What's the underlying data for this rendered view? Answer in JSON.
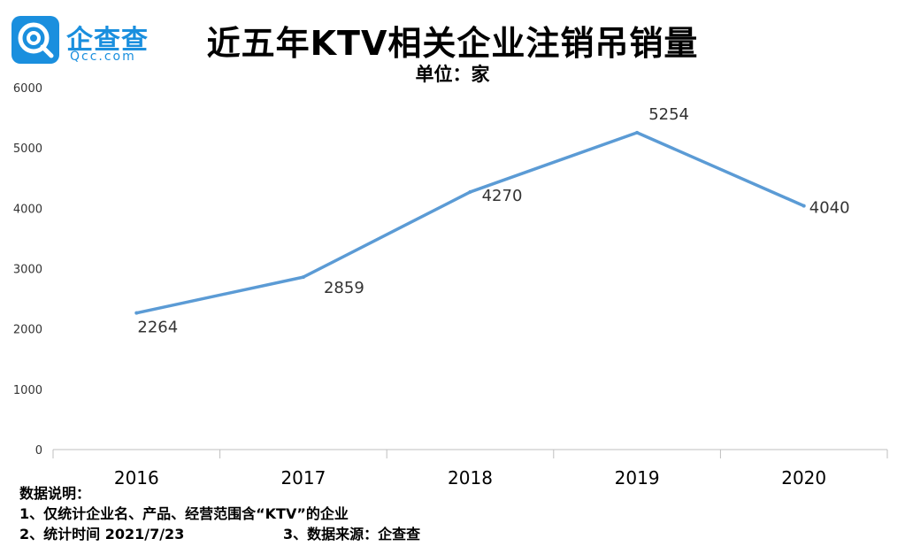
{
  "brand": {
    "name_cn": "企查查",
    "name_en": "Qcc.com",
    "color": "#1a8fde"
  },
  "header": {
    "title": "近五年KTV相关企业注销吊销量",
    "subtitle": "单位：家"
  },
  "chart_data": {
    "type": "line",
    "title": "近五年KTV相关企业注销吊销量",
    "subtitle": "单位：家",
    "categories": [
      "2016",
      "2017",
      "2018",
      "2019",
      "2020"
    ],
    "values": [
      2264,
      2859,
      4270,
      5254,
      4040
    ],
    "data_labels": [
      "2264",
      "2859",
      "4270",
      "5254",
      "4040"
    ],
    "ylim": [
      0,
      6000
    ],
    "yticks": [
      "0",
      "1000",
      "2000",
      "3000",
      "4000",
      "5000",
      "6000"
    ],
    "grid": false,
    "line_color": "#5b9bd5"
  },
  "notes": {
    "heading": "数据说明：",
    "line1": "1、仅统计企业名、产品、经营范围含“KTV”的企业",
    "line2": "2、统计时间 2021/7/23",
    "line3": "3、数据来源：企查查"
  }
}
